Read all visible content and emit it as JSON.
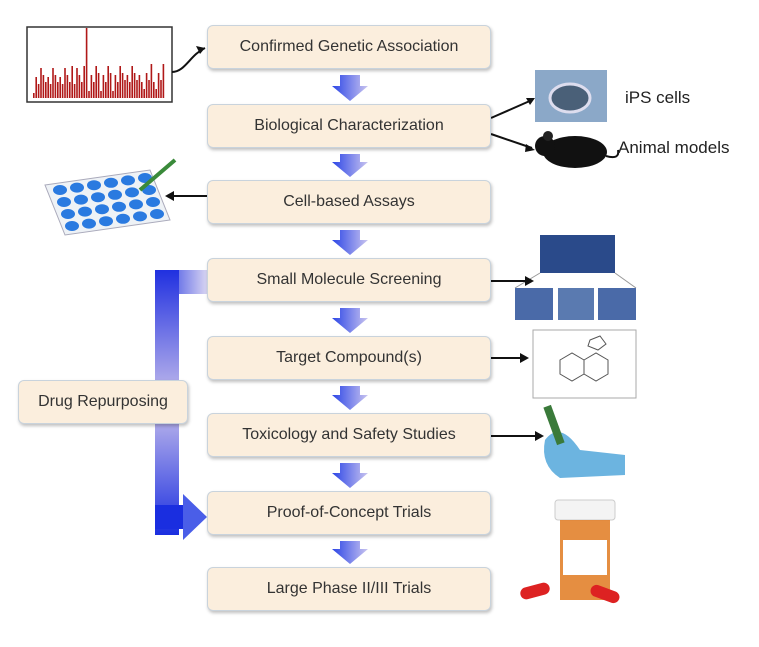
{
  "steps": [
    "Confirmed Genetic Association",
    "Biological Characterization",
    "Cell-based Assays",
    "Small Molecule Screening",
    "Target Compound(s)",
    "Toxicology and Safety Studies",
    "Proof-of-Concept Trials",
    "Large Phase II/III Trials"
  ],
  "side_box": "Drug Repurposing",
  "labels": {
    "ips": "iPS cells",
    "animal": "Animal models"
  },
  "colors": {
    "box_fill": "#fbeedd",
    "box_border": "#c9d3dc",
    "arrow": "#4a5ee8"
  }
}
